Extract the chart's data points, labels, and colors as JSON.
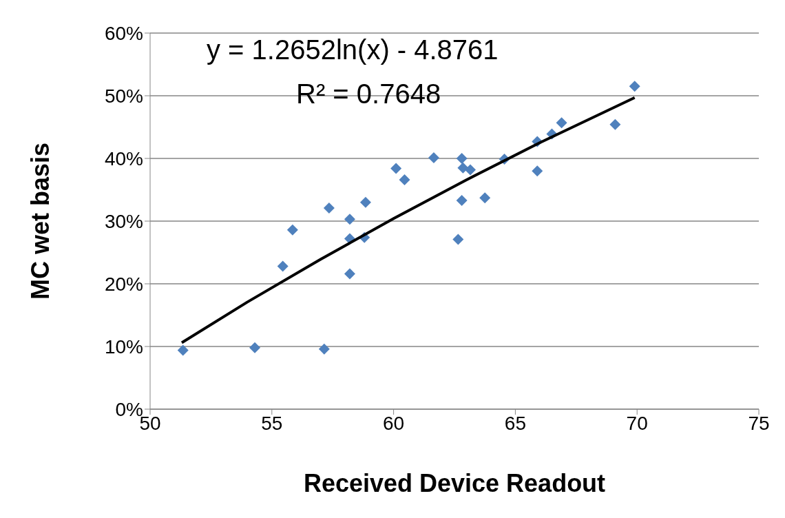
{
  "chart_data": {
    "type": "scatter",
    "xlabel": "Received Device Readout",
    "ylabel": "MC wet basis",
    "annotations": [
      "y = 1.2652ln(x) - 4.8761",
      "R² = 0.7648"
    ],
    "xlim": [
      50,
      75
    ],
    "xticks": [
      50,
      55,
      60,
      65,
      70,
      75
    ],
    "ylim": [
      0,
      60
    ],
    "yticks": [
      {
        "value": 0,
        "label": "0%"
      },
      {
        "value": 10,
        "label": "10%"
      },
      {
        "value": 20,
        "label": "20%"
      },
      {
        "value": 30,
        "label": "30%"
      },
      {
        "value": 40,
        "label": "40%"
      },
      {
        "value": 50,
        "label": "50%"
      },
      {
        "value": 60,
        "label": "60%"
      }
    ],
    "grid": "y",
    "legend": false,
    "marker": "diamond",
    "series": [
      {
        "color": "#4f81bd",
        "x": [
          51.35,
          54.3,
          57.15,
          55.45,
          55.85,
          57.35,
          58.2,
          58.2,
          58.2,
          58.8,
          58.85,
          60.1,
          60.45,
          61.65,
          62.8,
          62.85,
          63.15,
          62.8,
          62.65,
          64.55,
          63.75,
          65.9,
          65.9,
          66.5,
          66.9,
          69.1,
          69.9
        ],
        "values": [
          9.4,
          9.8,
          9.6,
          22.8,
          28.6,
          32.1,
          30.3,
          27.2,
          21.6,
          27.4,
          33.0,
          38.4,
          36.6,
          40.1,
          40.0,
          38.5,
          38.2,
          33.3,
          27.1,
          39.9,
          33.7,
          38.0,
          42.7,
          43.9,
          45.7,
          45.4,
          51.5
        ]
      },
      {
        "type": "line",
        "color": "#000000",
        "marker": "none",
        "x": [
          51.3,
          54,
          57,
          60,
          63,
          66,
          69.9
        ],
        "values": [
          10.6,
          17.1,
          23.9,
          30.4,
          36.6,
          42.5,
          49.7
        ]
      }
    ]
  }
}
